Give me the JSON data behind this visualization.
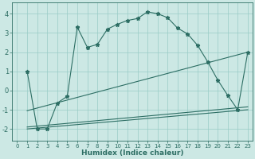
{
  "xlabel": "Humidex (Indice chaleur)",
  "bg_color": "#cce8e4",
  "grid_color": "#99ccc6",
  "line_color": "#2d6e64",
  "xlim": [
    -0.5,
    23.5
  ],
  "ylim": [
    -2.6,
    4.6
  ],
  "yticks": [
    -2,
    -1,
    0,
    1,
    2,
    3,
    4
  ],
  "xticks": [
    0,
    1,
    2,
    3,
    4,
    5,
    6,
    7,
    8,
    9,
    10,
    11,
    12,
    13,
    14,
    15,
    16,
    17,
    18,
    19,
    20,
    21,
    22,
    23
  ],
  "curve_x": [
    1,
    2,
    3,
    4,
    5,
    6,
    7,
    8,
    9,
    10,
    11,
    12,
    13,
    14,
    15,
    16,
    17,
    18,
    19,
    20,
    21,
    22,
    23
  ],
  "curve_y": [
    1.0,
    -2.0,
    -2.0,
    -0.65,
    -0.3,
    3.3,
    2.25,
    2.4,
    3.2,
    3.45,
    3.65,
    3.75,
    4.1,
    4.0,
    3.8,
    3.25,
    2.95,
    2.35,
    1.5,
    0.55,
    -0.25,
    -1.0,
    2.0
  ],
  "line1_x": [
    1,
    23
  ],
  "line1_y": [
    -1.05,
    2.0
  ],
  "line2_x": [
    1,
    23
  ],
  "line2_y": [
    -1.9,
    -0.85
  ],
  "line3_x": [
    1,
    23
  ],
  "line3_y": [
    -2.0,
    -1.0
  ]
}
